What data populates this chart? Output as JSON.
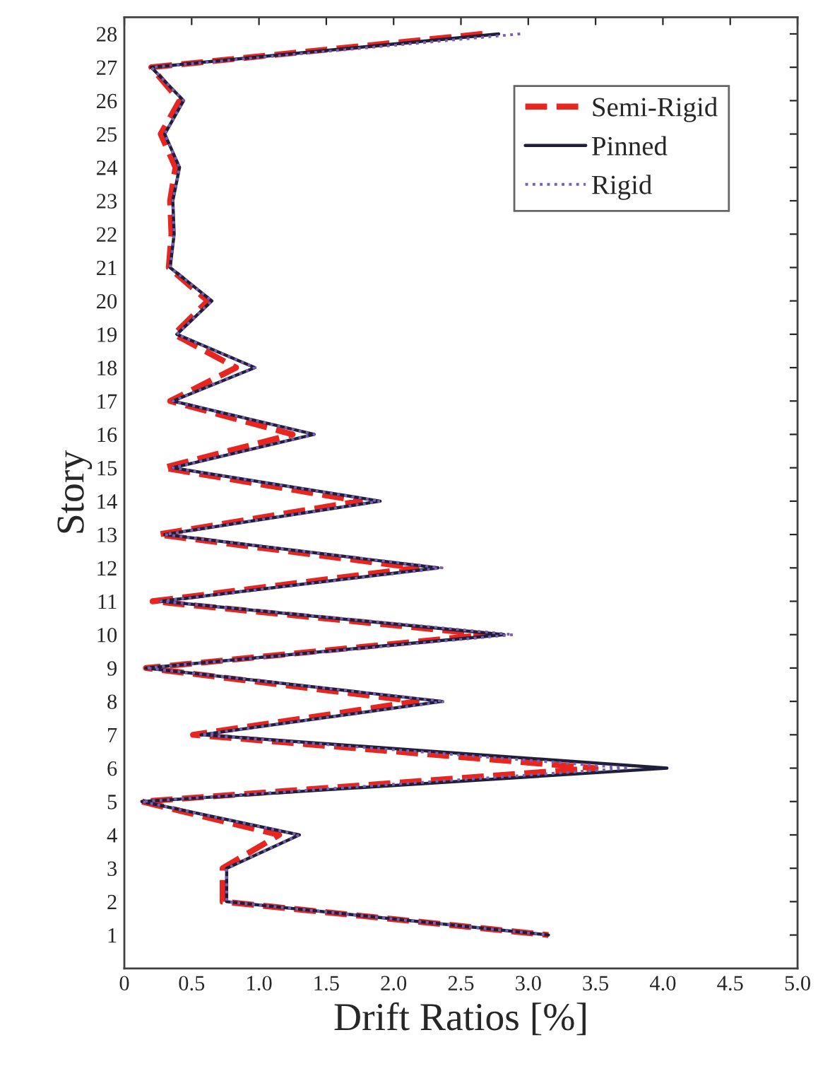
{
  "chart_data": {
    "type": "line",
    "xlabel": "Drift Ratios [%]",
    "ylabel": "Story",
    "orientation": "horizontal",
    "categories": [
      "28",
      "27",
      "26",
      "25",
      "24",
      "23",
      "22",
      "21",
      "20",
      "19",
      "18",
      "17",
      "16",
      "15",
      "14",
      "13",
      "12",
      "11",
      "10",
      "9",
      "8",
      "7",
      "6",
      "5",
      "4",
      "3",
      "2",
      "1"
    ],
    "series": [
      {
        "name": "Semi-Rigid",
        "color": "#e8251f",
        "line_style": "dashed",
        "values": [
          2.66,
          0.2,
          0.41,
          0.27,
          0.38,
          0.34,
          0.35,
          0.33,
          0.62,
          0.37,
          0.83,
          0.34,
          1.25,
          0.29,
          1.75,
          0.25,
          2.17,
          0.21,
          2.7,
          0.16,
          2.17,
          0.51,
          3.5,
          0.13,
          1.15,
          0.73,
          0.73,
          3.15
        ]
      },
      {
        "name": "Pinned",
        "color": "#1f1f3a",
        "line_style": "solid",
        "values": [
          2.78,
          0.2,
          0.44,
          0.3,
          0.41,
          0.36,
          0.37,
          0.34,
          0.65,
          0.39,
          0.97,
          0.36,
          1.41,
          0.36,
          1.9,
          0.3,
          2.33,
          0.27,
          2.82,
          0.16,
          2.36,
          0.57,
          4.03,
          0.13,
          1.3,
          0.76,
          0.76,
          3.15
        ]
      },
      {
        "name": "Rigid",
        "color": "#7a5fb5",
        "line_style": "dotted",
        "values": [
          2.94,
          0.2,
          0.44,
          0.3,
          0.41,
          0.36,
          0.37,
          0.34,
          0.65,
          0.39,
          0.97,
          0.36,
          1.41,
          0.36,
          1.9,
          0.3,
          2.36,
          0.27,
          2.89,
          0.16,
          2.38,
          0.57,
          3.75,
          0.13,
          1.3,
          0.76,
          0.76,
          3.15
        ]
      }
    ],
    "xlim": [
      0,
      5
    ],
    "xticks": [
      0,
      0.5,
      {
        "value": 1,
        "label": "1.0"
      },
      1.5,
      {
        "value": 2,
        "label": "2.0"
      },
      2.5,
      {
        "value": 3,
        "label": "3.0"
      },
      3.5,
      {
        "value": 4,
        "label": "4.0"
      },
      4.5,
      {
        "value": 5,
        "label": "5.0"
      }
    ],
    "grid": false,
    "legend": "top right"
  }
}
